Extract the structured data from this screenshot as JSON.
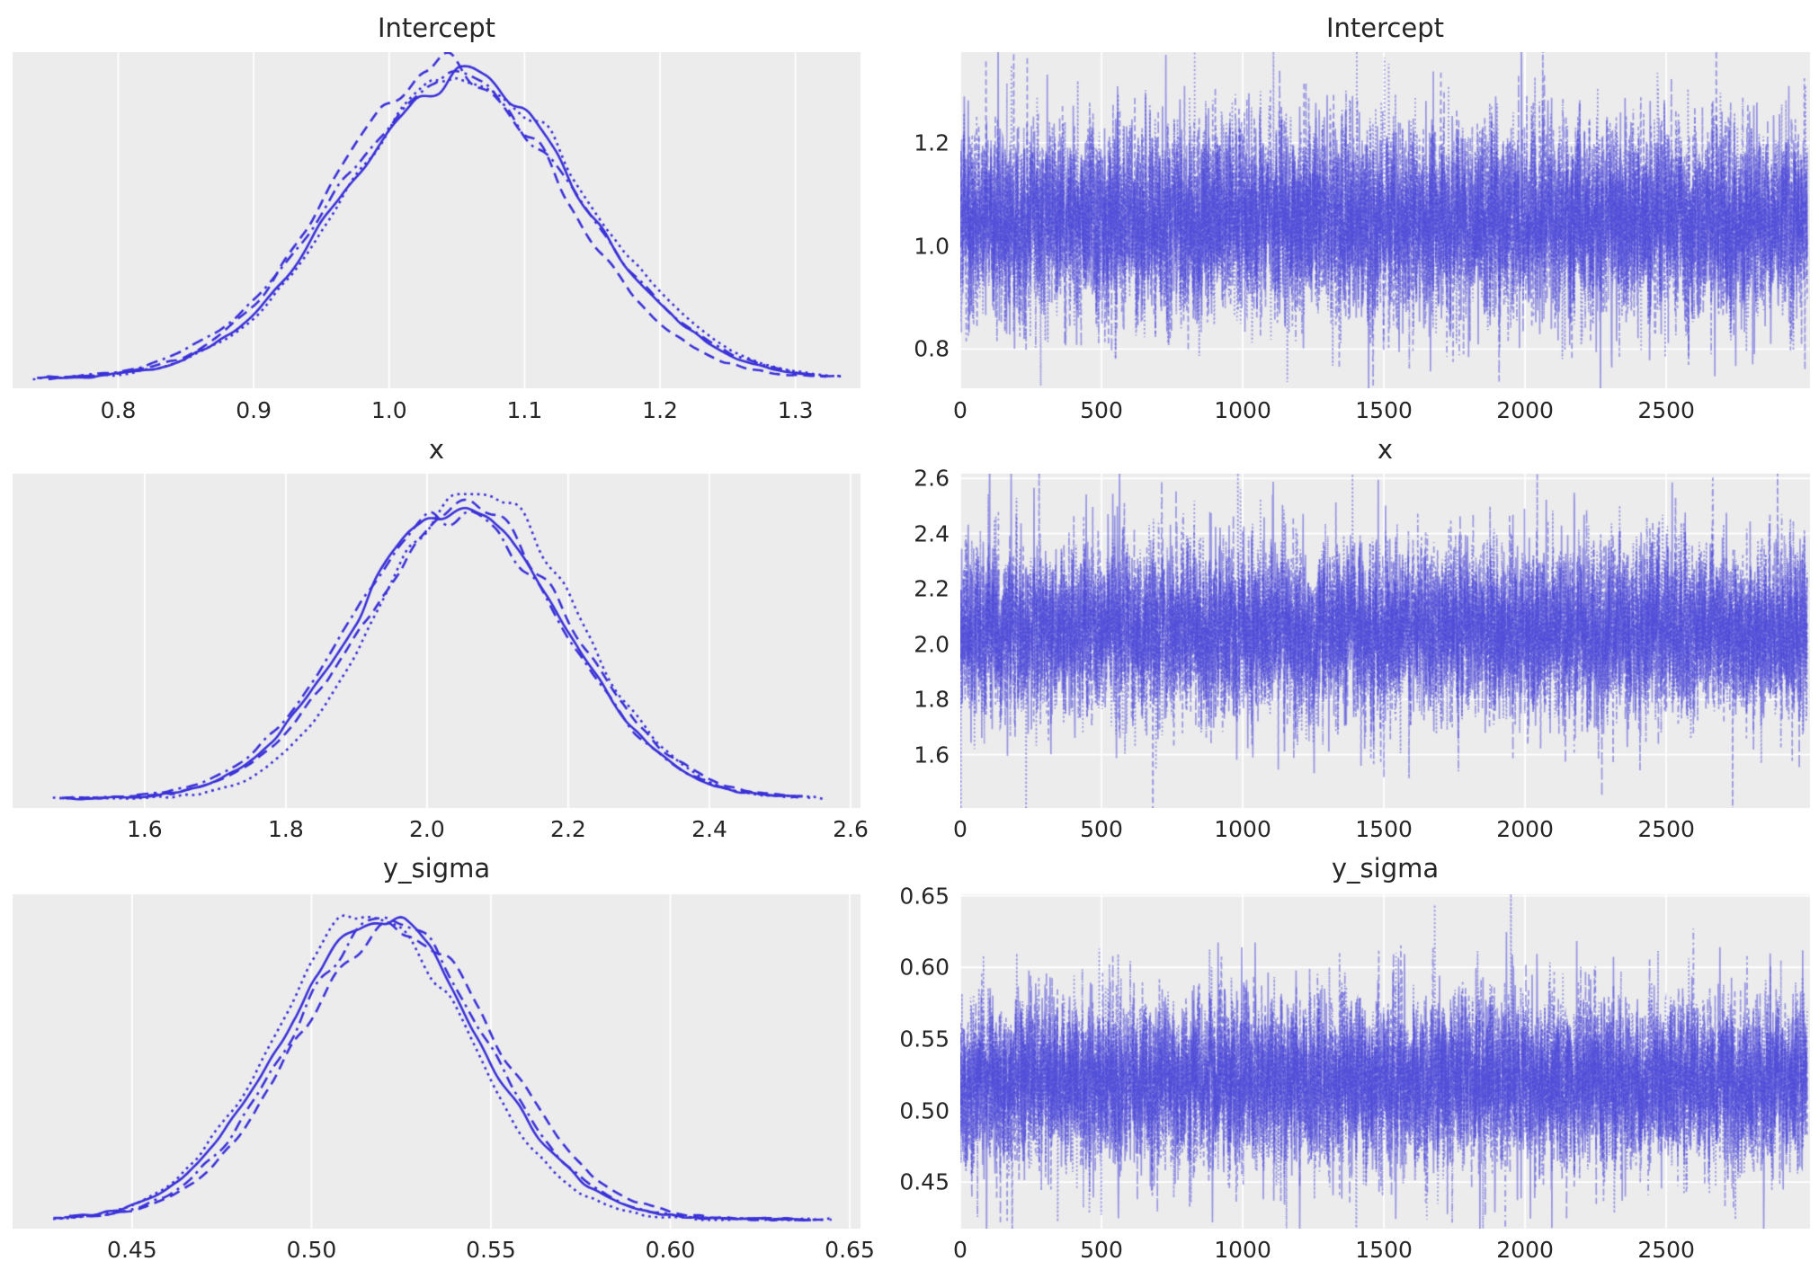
{
  "chart_data": {
    "type": "line",
    "description": "MCMC posterior trace plot grid: left column kernel-density posteriors per chain, right column sampled trace series per chain",
    "n_chains": 4,
    "chain_line_styles": [
      "solid",
      "dashed",
      "dotted",
      "dashdot"
    ],
    "rows": [
      {
        "parameter": "Intercept",
        "kde": {
          "title": "Intercept",
          "xlim": [
            0.722,
            1.348
          ],
          "xticks": [
            0.8,
            0.9,
            1.0,
            1.1,
            1.2,
            1.3
          ],
          "xtick_labels": [
            "0.8",
            "0.9",
            "1.0",
            "1.1",
            "1.2",
            "1.3"
          ],
          "curve_range": [
            0.737,
            1.335
          ],
          "chains": [
            {
              "style": "solid",
              "mean": 1.053,
              "sd": 0.088,
              "peak": 0.96
            },
            {
              "style": "dashed",
              "mean": 1.043,
              "sd": 0.085,
              "peak": 1.0
            },
            {
              "style": "dotted",
              "mean": 1.058,
              "sd": 0.089,
              "peak": 0.97
            },
            {
              "style": "dashdot",
              "mean": 1.048,
              "sd": 0.092,
              "peak": 0.945
            }
          ]
        },
        "trace": {
          "title": "Intercept",
          "xlim": [
            0,
            3009
          ],
          "xticks": [
            0,
            500,
            1000,
            1500,
            2000,
            2500
          ],
          "xtick_labels": [
            "0",
            "500",
            "1000",
            "1500",
            "2000",
            "2500"
          ],
          "ylim": [
            0.724,
            1.376
          ],
          "yticks": [
            0.8,
            1.0,
            1.2
          ],
          "ytick_labels": [
            "0.8",
            "1.0",
            "1.2"
          ],
          "mean": 1.05,
          "sd": 0.086,
          "n_draws": 3000
        }
      },
      {
        "parameter": "x",
        "kde": {
          "title": "x",
          "xlim": [
            1.413,
            2.614
          ],
          "xticks": [
            1.6,
            1.8,
            2.0,
            2.2,
            2.4,
            2.6
          ],
          "xtick_labels": [
            "1.6",
            "1.8",
            "2.0",
            "2.2",
            "2.4",
            "2.6"
          ],
          "curve_range": [
            1.47,
            2.565
          ],
          "chains": [
            {
              "style": "solid",
              "mean": 2.045,
              "sd": 0.146,
              "peak": 0.95
            },
            {
              "style": "dashed",
              "mean": 2.055,
              "sd": 0.148,
              "peak": 0.93
            },
            {
              "style": "dotted",
              "mean": 2.07,
              "sd": 0.138,
              "peak": 1.0
            },
            {
              "style": "dashdot",
              "mean": 2.04,
              "sd": 0.15,
              "peak": 0.92
            }
          ]
        },
        "trace": {
          "title": "x",
          "xlim": [
            0,
            3009
          ],
          "xticks": [
            0,
            500,
            1000,
            1500,
            2000,
            2500
          ],
          "xtick_labels": [
            "0",
            "500",
            "1000",
            "1500",
            "2000",
            "2500"
          ],
          "ylim": [
            1.407,
            2.617
          ],
          "yticks": [
            1.6,
            1.8,
            2.0,
            2.2,
            2.4,
            2.6
          ],
          "ytick_labels": [
            "1.6",
            "1.8",
            "2.0",
            "2.2",
            "2.4",
            "2.6"
          ],
          "mean": 2.05,
          "sd": 0.145,
          "n_draws": 3000
        }
      },
      {
        "parameter": "y_sigma",
        "kde": {
          "title": "y_sigma",
          "xlim": [
            0.4167,
            0.653
          ],
          "xticks": [
            0.45,
            0.5,
            0.55,
            0.6,
            0.65
          ],
          "xtick_labels": [
            "0.45",
            "0.50",
            "0.55",
            "0.60",
            "0.65"
          ],
          "curve_range": [
            0.428,
            0.645
          ],
          "chains": [
            {
              "style": "solid",
              "mean": 0.519,
              "sd": 0.0278,
              "peak": 0.96
            },
            {
              "style": "dashed",
              "mean": 0.524,
              "sd": 0.0282,
              "peak": 0.94
            },
            {
              "style": "dotted",
              "mean": 0.516,
              "sd": 0.0265,
              "peak": 1.0
            },
            {
              "style": "dashdot",
              "mean": 0.521,
              "sd": 0.0272,
              "peak": 0.97
            }
          ]
        },
        "trace": {
          "title": "y_sigma",
          "xlim": [
            0,
            3009
          ],
          "xticks": [
            0,
            500,
            1000,
            1500,
            2000,
            2500
          ],
          "xtick_labels": [
            "0",
            "500",
            "1000",
            "1500",
            "2000",
            "2500"
          ],
          "ylim": [
            0.4175,
            0.651
          ],
          "yticks": [
            0.45,
            0.5,
            0.55,
            0.6,
            0.65
          ],
          "ytick_labels": [
            "0.45",
            "0.50",
            "0.55",
            "0.60",
            "0.65"
          ],
          "mean": 0.52,
          "sd": 0.0275,
          "n_draws": 3000
        }
      }
    ],
    "style": {
      "panel_bg": "#ececec",
      "grid_color": "#ffffff",
      "kde_color": "#3a31d8",
      "trace_color_rgb": "70,66,215",
      "trace_alpha": 0.5,
      "text_color": "#262626",
      "legend": "off",
      "grid": "on"
    }
  }
}
